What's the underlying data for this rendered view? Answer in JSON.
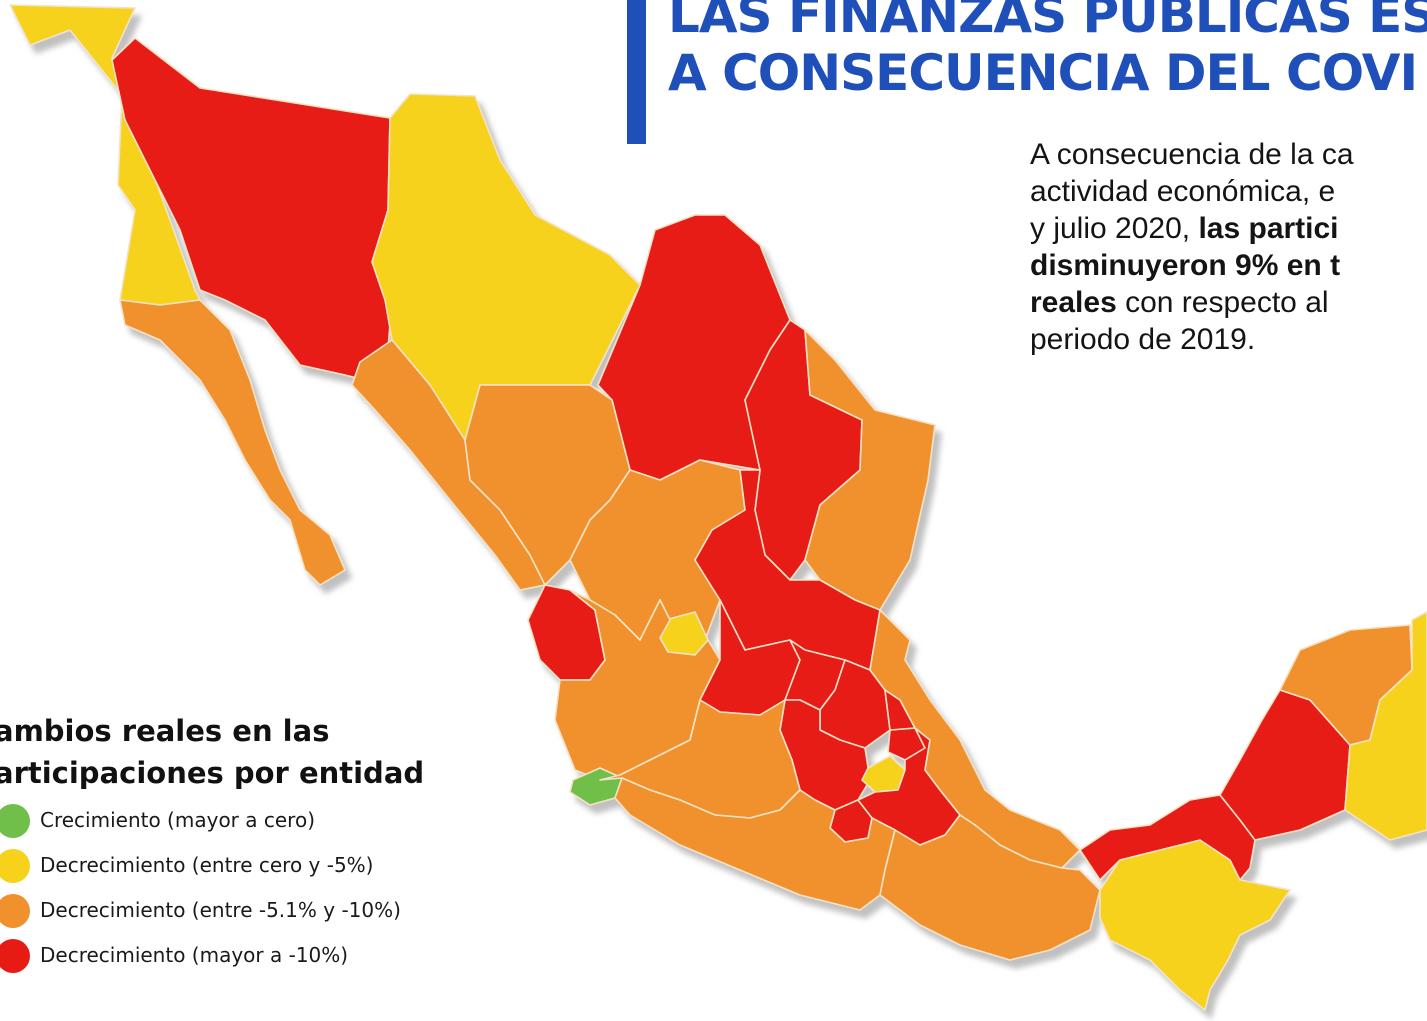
{
  "headline": {
    "line1": "LAS FINANZAS PÚBLICAS ES",
    "line2": "A CONSECUENCIA DEL COVI"
  },
  "body": {
    "line1": "A consecuencia de la ca",
    "line2": "actividad económica, e",
    "line3_normal": "y julio 2020, ",
    "line3_bold": "las partici",
    "line4_bold": "disminuyeron 9% en t",
    "line5_bold": "reales",
    "line5_normal": " con respecto al",
    "line6": "periodo de 2019."
  },
  "legend": {
    "title_line1": "ambios reales en las",
    "title_line2": "articipaciones por entidad",
    "items": [
      {
        "label": "Crecimiento (mayor a cero)",
        "color": "#6fbf4a",
        "category": "growth"
      },
      {
        "label": "Decrecimiento (entre cero y -5%)",
        "color": "#f6d21a",
        "category": "decrease-0-5"
      },
      {
        "label": "Decrecimiento (entre -5.1% y -10%)",
        "color": "#f0912e",
        "category": "decrease-5-10"
      },
      {
        "label": "Decrecimiento (mayor a -10%)",
        "color": "#e81b14",
        "category": "decrease-over-10"
      }
    ]
  },
  "colors": {
    "accent": "#1f4fb8",
    "growth": "#6fbf4a",
    "decrease-0-5": "#f6d21a",
    "decrease-5-10": "#f0912e",
    "decrease-over-10": "#e81b14"
  },
  "states": {
    "baja-california": "decrease-0-5",
    "sonora": "decrease-over-10",
    "chihuahua": "decrease-0-5",
    "coahuila": "decrease-over-10",
    "nuevo-leon": "decrease-over-10",
    "tamaulipas": "decrease-5-10",
    "baja-california-sur": "decrease-5-10",
    "sinaloa": "decrease-5-10",
    "durango": "decrease-5-10",
    "zacatecas": "decrease-5-10",
    "san-luis-potosi": "decrease-over-10",
    "nayarit": "decrease-over-10",
    "aguascalientes": "decrease-0-5",
    "jalisco": "decrease-5-10",
    "colima": "growth",
    "guanajuato": "decrease-over-10",
    "queretaro": "decrease-over-10",
    "hidalgo": "decrease-over-10",
    "mexico": "decrease-over-10",
    "cdmx": "decrease-0-5",
    "morelos": "decrease-over-10",
    "tlaxcala": "decrease-over-10",
    "puebla": "decrease-over-10",
    "michoacan": "decrease-5-10",
    "veracruz": "decrease-5-10",
    "guerrero": "decrease-5-10",
    "oaxaca": "decrease-5-10",
    "chiapas": "decrease-0-5",
    "tabasco": "decrease-over-10",
    "campeche": "decrease-over-10",
    "yucatan": "decrease-5-10",
    "quintana-roo": "decrease-0-5"
  }
}
